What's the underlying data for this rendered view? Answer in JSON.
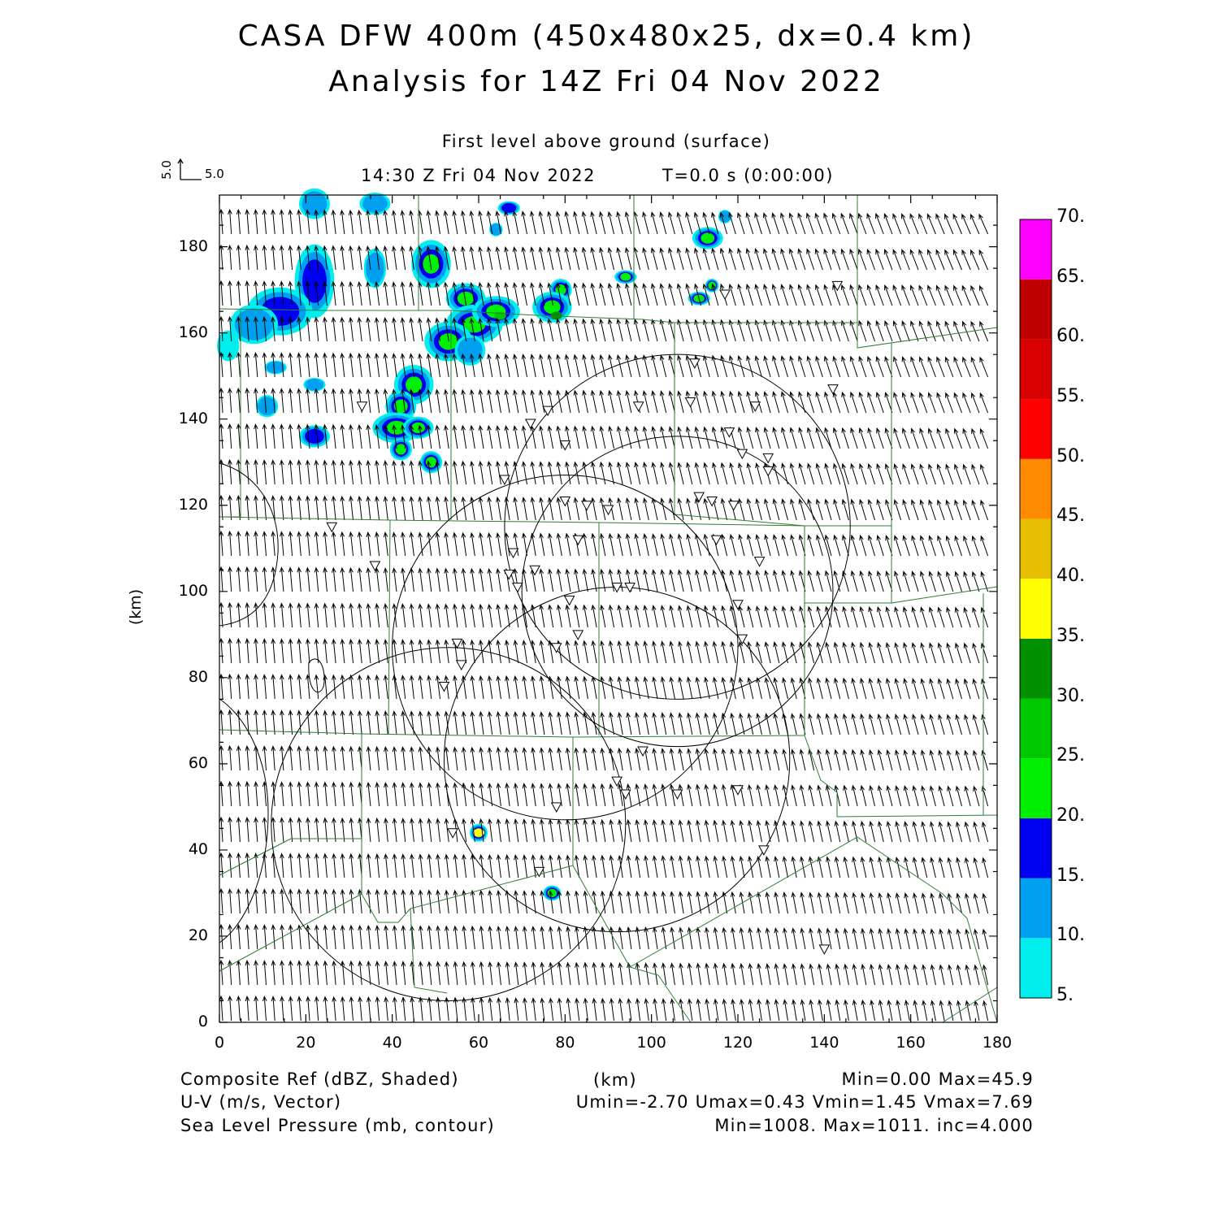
{
  "header": {
    "title_line1": "CASA DFW 400m (450x480x25, dx=0.4 km)",
    "title_line2": "Analysis for 14Z Fri 04 Nov 2022",
    "level_label": "First level above ground (surface)",
    "valid_time": "14:30 Z Fri 04 Nov 2022",
    "model_time": "T=0.0 s (0:00:00)"
  },
  "vector_key": {
    "u_label": "5.0",
    "v_label": "5.0"
  },
  "axes": {
    "xlabel": "(km)",
    "ylabel": "(km)",
    "xlim": [
      0,
      180
    ],
    "ylim": [
      0,
      192
    ],
    "xticks": [
      "0",
      "20",
      "40",
      "60",
      "80",
      "100",
      "120",
      "140",
      "160",
      "180"
    ],
    "yticks": [
      "0",
      "20",
      "40",
      "60",
      "80",
      "100",
      "120",
      "140",
      "160",
      "180"
    ]
  },
  "colorbar": {
    "labels": [
      "5.",
      "10.",
      "15.",
      "20.",
      "25.",
      "30.",
      "35.",
      "40.",
      "45.",
      "50.",
      "55.",
      "60.",
      "65.",
      "70."
    ],
    "colors": [
      "#00eeee",
      "#00a0f0",
      "#0000f0",
      "#00f000",
      "#00c800",
      "#009000",
      "#ffff00",
      "#e6be00",
      "#ff8c00",
      "#ff0000",
      "#d80000",
      "#c00000",
      "#ff00ff"
    ]
  },
  "footer": {
    "left": [
      "Composite Ref (dBZ, Shaded)",
      "U-V (m/s, Vector)",
      "Sea Level Pressure (mb, contour)"
    ],
    "center": "(km)",
    "right": [
      "Min=0.00 Max=45.9",
      "Umin=-2.70 Umax=0.43 Vmin=1.45 Vmax=7.69",
      "Min=1008. Max=1011. inc=4.000"
    ]
  },
  "chart_data": {
    "type": "map",
    "fields": [
      "Composite reflectivity (dBZ)",
      "U-V wind vectors (m/s)",
      "Sea level pressure (mb)"
    ],
    "reflectivity_max": 45.9,
    "reflectivity_min": 0.0,
    "u_range": [
      -2.7,
      0.43
    ],
    "v_range": [
      1.45,
      7.69
    ],
    "slp_range": [
      1008,
      1011
    ],
    "slp_contour_interval": 4.0,
    "radar_rings": [
      {
        "cx": 106,
        "cy": 115,
        "r": 40
      },
      {
        "cx": 80,
        "cy": 87,
        "r": 40
      },
      {
        "cx": 92,
        "cy": 61,
        "r": 40
      },
      {
        "cx": 53,
        "cy": 46,
        "r": 41
      },
      {
        "cx": 106,
        "cy": 100,
        "r": 36
      }
    ],
    "stations": [
      [
        26,
        115
      ],
      [
        36,
        106
      ],
      [
        33,
        143
      ],
      [
        55,
        88
      ],
      [
        56,
        83
      ],
      [
        52,
        78
      ],
      [
        66,
        126
      ],
      [
        72,
        139
      ],
      [
        76,
        142
      ],
      [
        80,
        134
      ],
      [
        80,
        121
      ],
      [
        85,
        120
      ],
      [
        90,
        119
      ],
      [
        83,
        112
      ],
      [
        68,
        109
      ],
      [
        67,
        104
      ],
      [
        69,
        101
      ],
      [
        73,
        105
      ],
      [
        81,
        98
      ],
      [
        83,
        90
      ],
      [
        78,
        87
      ],
      [
        92,
        101
      ],
      [
        95,
        101
      ],
      [
        97,
        143
      ],
      [
        110,
        153
      ],
      [
        109,
        144
      ],
      [
        124,
        143
      ],
      [
        118,
        137
      ],
      [
        121,
        132
      ],
      [
        127,
        131
      ],
      [
        127,
        128
      ],
      [
        111,
        122
      ],
      [
        114,
        121
      ],
      [
        119,
        120
      ],
      [
        115,
        112
      ],
      [
        125,
        107
      ],
      [
        120,
        97
      ],
      [
        121,
        89
      ],
      [
        98,
        63
      ],
      [
        92,
        56
      ],
      [
        94,
        53
      ],
      [
        106,
        53
      ],
      [
        120,
        54
      ],
      [
        126,
        40
      ],
      [
        54,
        44
      ],
      [
        78,
        50
      ],
      [
        74,
        35
      ],
      [
        117,
        169
      ],
      [
        143,
        171
      ],
      [
        142,
        147
      ],
      [
        140,
        17
      ]
    ],
    "echoes": [
      {
        "cx": 22,
        "cy": 172,
        "rx": 4,
        "ry": 8,
        "level": 2
      },
      {
        "cx": 14,
        "cy": 165,
        "rx": 7,
        "ry": 5,
        "level": 2
      },
      {
        "cx": 8,
        "cy": 162,
        "rx": 5,
        "ry": 4,
        "level": 1
      },
      {
        "cx": 22,
        "cy": 190,
        "rx": 3,
        "ry": 3,
        "level": 1
      },
      {
        "cx": 36,
        "cy": 175,
        "rx": 2,
        "ry": 4,
        "level": 1
      },
      {
        "cx": 36,
        "cy": 190,
        "rx": 3,
        "ry": 2,
        "level": 1
      },
      {
        "cx": 49,
        "cy": 176,
        "rx": 4,
        "ry": 5,
        "level": 3
      },
      {
        "cx": 57,
        "cy": 168,
        "rx": 4,
        "ry": 3,
        "level": 3
      },
      {
        "cx": 59,
        "cy": 162,
        "rx": 6,
        "ry": 4,
        "level": 3
      },
      {
        "cx": 53,
        "cy": 158,
        "rx": 5,
        "ry": 4,
        "level": 3
      },
      {
        "cx": 64,
        "cy": 165,
        "rx": 5,
        "ry": 3,
        "level": 3
      },
      {
        "cx": 58,
        "cy": 156,
        "rx": 3,
        "ry": 3,
        "level": 1
      },
      {
        "cx": 45,
        "cy": 148,
        "rx": 4,
        "ry": 4,
        "level": 3
      },
      {
        "cx": 42,
        "cy": 143,
        "rx": 3,
        "ry": 3,
        "level": 3
      },
      {
        "cx": 41,
        "cy": 138,
        "rx": 5,
        "ry": 3,
        "level": 3
      },
      {
        "cx": 46,
        "cy": 138,
        "rx": 3,
        "ry": 2,
        "level": 3
      },
      {
        "cx": 42,
        "cy": 133,
        "rx": 2,
        "ry": 2,
        "level": 3
      },
      {
        "cx": 49,
        "cy": 130,
        "rx": 2,
        "ry": 2,
        "level": 3
      },
      {
        "cx": 22,
        "cy": 136,
        "rx": 3,
        "ry": 2,
        "level": 2
      },
      {
        "cx": 11,
        "cy": 143,
        "rx": 2,
        "ry": 2,
        "level": 1
      },
      {
        "cx": 13,
        "cy": 152,
        "rx": 2,
        "ry": 1,
        "level": 1
      },
      {
        "cx": 22,
        "cy": 148,
        "rx": 2,
        "ry": 1,
        "level": 1
      },
      {
        "cx": 2,
        "cy": 157,
        "rx": 2,
        "ry": 3,
        "level": 0
      },
      {
        "cx": 79,
        "cy": 170,
        "rx": 2,
        "ry": 2,
        "level": 3
      },
      {
        "cx": 77,
        "cy": 166,
        "rx": 4,
        "ry": 3,
        "level": 3
      },
      {
        "cx": 94,
        "cy": 173,
        "rx": 2,
        "ry": 1,
        "level": 3
      },
      {
        "cx": 113,
        "cy": 182,
        "rx": 3,
        "ry": 2,
        "level": 3
      },
      {
        "cx": 117,
        "cy": 187,
        "rx": 1,
        "ry": 1,
        "level": 1
      },
      {
        "cx": 114,
        "cy": 171,
        "rx": 1,
        "ry": 1,
        "level": 3
      },
      {
        "cx": 111,
        "cy": 168,
        "rx": 2,
        "ry": 1,
        "level": 3
      },
      {
        "cx": 67,
        "cy": 189,
        "rx": 2,
        "ry": 1,
        "level": 2
      },
      {
        "cx": 64,
        "cy": 184,
        "rx": 1,
        "ry": 1,
        "level": 1
      },
      {
        "cx": 60,
        "cy": 44,
        "rx": 1.5,
        "ry": 1.5,
        "level": 4
      },
      {
        "cx": 77,
        "cy": 30,
        "rx": 1.5,
        "ry": 1.2,
        "level": 3
      }
    ],
    "echo_cores": [
      {
        "cx": 65,
        "cy": 164,
        "level": 4
      },
      {
        "cx": 78,
        "cy": 164,
        "level": 5
      },
      {
        "cx": 60,
        "cy": 44,
        "level": 6
      }
    ]
  }
}
